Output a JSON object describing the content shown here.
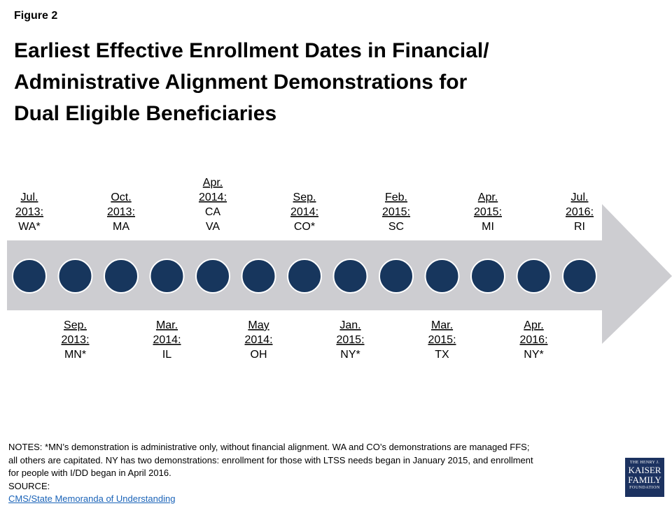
{
  "figure_label": "Figure 2",
  "title_lines": [
    "Earliest Effective Enrollment Dates in Financial/",
    "Administrative Alignment Demonstrations for",
    "Dual Eligible Beneficiaries"
  ],
  "colors": {
    "arrow": "#cdcdd1",
    "dot": "#17365d",
    "dot_border": "#ffffff",
    "link": "#1a63b8",
    "logo": "#1c3260"
  },
  "events": [
    {
      "date": [
        "Jul.",
        "2013:"
      ],
      "states": [
        "WA*"
      ],
      "side": "top"
    },
    {
      "date": [
        "Sep.",
        "2013:"
      ],
      "states": [
        "MN*"
      ],
      "side": "bottom"
    },
    {
      "date": [
        "Oct.",
        "2013:"
      ],
      "states": [
        "MA"
      ],
      "side": "top"
    },
    {
      "date": [
        "Mar.",
        "2014:"
      ],
      "states": [
        "IL"
      ],
      "side": "bottom"
    },
    {
      "date": [
        "Apr.",
        "2014:"
      ],
      "states": [
        "CA",
        "VA"
      ],
      "side": "top"
    },
    {
      "date": [
        "May",
        "2014:"
      ],
      "states": [
        "OH"
      ],
      "side": "bottom"
    },
    {
      "date": [
        "Sep.",
        "2014:"
      ],
      "states": [
        "CO*"
      ],
      "side": "top"
    },
    {
      "date": [
        "Jan.",
        "2015:"
      ],
      "states": [
        "NY*"
      ],
      "side": "bottom"
    },
    {
      "date": [
        "Feb.",
        "2015:"
      ],
      "states": [
        "SC"
      ],
      "side": "top"
    },
    {
      "date": [
        "Mar.",
        "2015:"
      ],
      "states": [
        "TX"
      ],
      "side": "bottom"
    },
    {
      "date": [
        "Apr.",
        "2015:"
      ],
      "states": [
        "MI"
      ],
      "side": "top"
    },
    {
      "date": [
        "Apr.",
        "2016:"
      ],
      "states": [
        "NY*"
      ],
      "side": "bottom"
    },
    {
      "date": [
        "Jul.",
        "2016:"
      ],
      "states": [
        "RI"
      ],
      "side": "top"
    }
  ],
  "notes": {
    "lines": [
      "NOTES: *MN’s demonstration is administrative only, without financial alignment. WA and CO’s demonstrations are managed FFS;",
      "all others are capitated. NY has two demonstrations: enrollment for those with LTSS needs began in January 2015, and enrollment",
      "for people with I/DD began in April 2016."
    ],
    "source_prefix": "SOURCE: ",
    "source_link": "CMS/State Memoranda of Understanding"
  },
  "logo": {
    "line1": "THE HENRY J.",
    "line2": "KAISER",
    "line3": "FAMILY",
    "line4": "FOUNDATION"
  }
}
